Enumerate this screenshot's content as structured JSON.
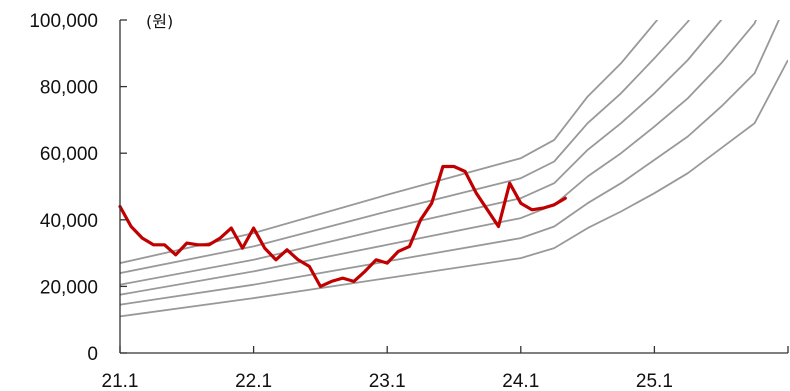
{
  "chart_data": {
    "type": "line",
    "unit_label": "(원)",
    "x_tick_labels": [
      "21.1",
      "22.1",
      "23.1",
      "24.1",
      "25.1"
    ],
    "y_tick_labels": [
      "0",
      "20,000",
      "40,000",
      "60,000",
      "80,000",
      "100,000"
    ],
    "xlim": [
      0,
      60
    ],
    "ylim": [
      0,
      100000
    ],
    "x_unit": "months since 21.1",
    "grid": false,
    "legend": "none",
    "colors": {
      "price": "#c00000",
      "band": "#999999",
      "axis": "#333333"
    },
    "price_series": {
      "x": [
        0,
        1,
        2,
        3,
        4,
        5,
        6,
        7,
        8,
        9,
        10,
        11,
        12,
        13,
        14,
        15,
        16,
        17,
        18,
        19,
        20,
        21,
        22,
        23,
        24,
        25,
        26,
        27,
        28,
        29,
        30,
        31,
        32,
        33,
        34,
        35,
        36,
        37,
        38,
        39,
        40
      ],
      "values": [
        44000,
        38000,
        34500,
        32500,
        32500,
        29500,
        33000,
        32500,
        32500,
        34500,
        37500,
        31500,
        37500,
        31500,
        28000,
        31000,
        28000,
        26000,
        20000,
        21500,
        22500,
        21500,
        24500,
        28000,
        27000,
        30500,
        32000,
        40000,
        45000,
        56000,
        56000,
        54500,
        48000,
        43000,
        38000,
        51000,
        45000,
        43000,
        43500,
        44500,
        46500
      ]
    },
    "band_series": [
      {
        "x": [
          0,
          12,
          24,
          36,
          39,
          42,
          45,
          48,
          51,
          54,
          57,
          60
        ],
        "values": [
          11000,
          16500,
          22500,
          28500,
          31500,
          37500,
          42500,
          48000,
          54000,
          61500,
          69000,
          88000
        ]
      },
      {
        "x": [
          0,
          12,
          24,
          36,
          39,
          42,
          45,
          48,
          51,
          54,
          57,
          60
        ],
        "values": [
          14500,
          20500,
          27500,
          34500,
          38000,
          45000,
          51000,
          58000,
          65000,
          74000,
          84000,
          106000
        ]
      },
      {
        "x": [
          0,
          12,
          24,
          36,
          39,
          42,
          45,
          48,
          51,
          54,
          57,
          60
        ],
        "values": [
          17500,
          24500,
          32500,
          40500,
          44500,
          53000,
          60000,
          68000,
          76500,
          87000,
          99000,
          124000
        ]
      },
      {
        "x": [
          0,
          12,
          24,
          36,
          39,
          42,
          45,
          48,
          51,
          54,
          57,
          60
        ],
        "values": [
          20500,
          28000,
          37500,
          46500,
          51000,
          61000,
          69000,
          78000,
          88000,
          100000,
          114000,
          143000
        ]
      },
      {
        "x": [
          0,
          12,
          24,
          36,
          39,
          42,
          45,
          48,
          51,
          54,
          57,
          60
        ],
        "values": [
          24000,
          32000,
          42500,
          52500,
          57500,
          69000,
          78000,
          88500,
          99500,
          114000,
          129000,
          162000
        ]
      },
      {
        "x": [
          0,
          12,
          24,
          36,
          39,
          42,
          45,
          48,
          51,
          54,
          57,
          60
        ],
        "values": [
          27000,
          36000,
          47500,
          58500,
          64000,
          77000,
          87000,
          99000,
          111000,
          127000,
          144000,
          180000
        ]
      }
    ]
  }
}
